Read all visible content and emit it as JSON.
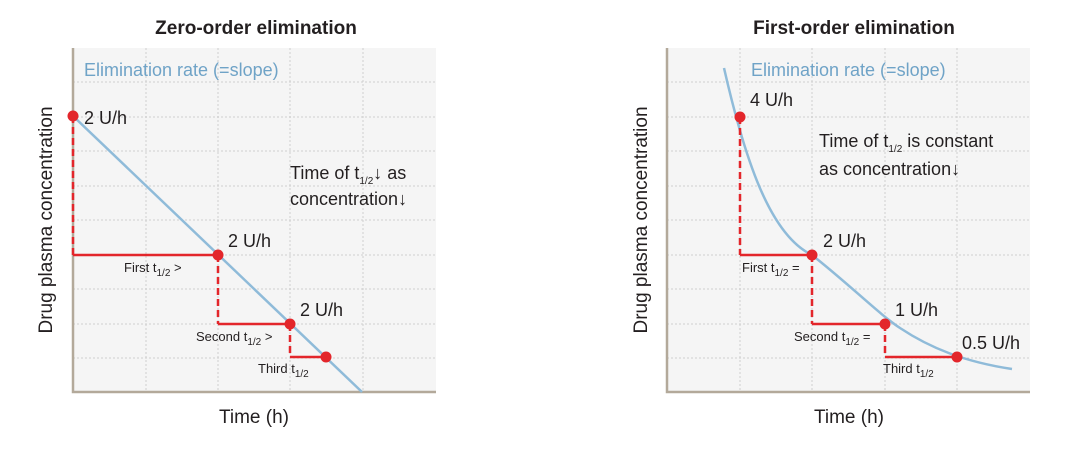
{
  "zero_order": {
    "title": "Zero-order elimination",
    "rate_label": "Elimination rate (=slope)",
    "ylabel": "Drug plasma concentration",
    "xlabel": "Time (h)",
    "points": [
      "2 U/h",
      "2 U/h",
      "2 U/h"
    ],
    "note_line1_prefix": "Time of t",
    "note_line1_sub": "1/2",
    "note_line1_suffix": "↓ as",
    "note_line2": "concentration↓",
    "half_lives": [
      {
        "prefix": "First t",
        "sub": "1/2",
        "suffix": " >"
      },
      {
        "prefix": "Second t",
        "sub": "1/2",
        "suffix": " >"
      },
      {
        "prefix": "Third t",
        "sub": "1/2",
        "suffix": ""
      }
    ]
  },
  "first_order": {
    "title": "First-order elimination",
    "rate_label": "Elimination rate (=slope)",
    "ylabel": "Drug plasma concentration",
    "xlabel": "Time (h)",
    "points": [
      "4 U/h",
      "2 U/h",
      "1 U/h",
      "0.5 U/h"
    ],
    "note_line1_prefix": "Time of t",
    "note_line1_sub": "1/2",
    "note_line1_suffix": " is constant",
    "note_line2": "as concentration↓",
    "half_lives": [
      {
        "prefix": "First t",
        "sub": "1/2",
        "suffix": " ="
      },
      {
        "prefix": "Second t",
        "sub": "1/2",
        "suffix": " ="
      },
      {
        "prefix": "Third t",
        "sub": "1/2",
        "suffix": ""
      }
    ]
  },
  "colors": {
    "curve": "#8fbbd9",
    "markers": "#e3262b",
    "axis": "#b3a99a",
    "rate_text": "#6fa3c7"
  }
}
